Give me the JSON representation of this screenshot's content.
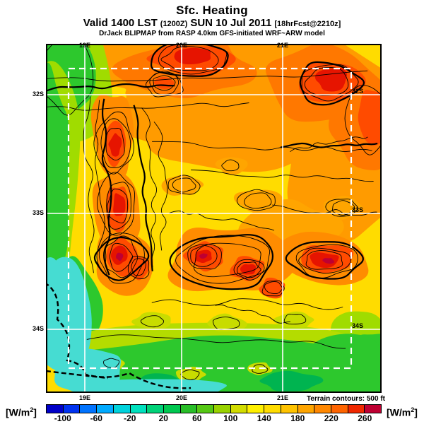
{
  "header": {
    "title": "Sfc. Heating",
    "valid_prefix": "Valid 1400 LST",
    "valid_zulu": "(1200Z)",
    "valid_date": "SUN 10 Jul 2011",
    "forecast_tag": "[18hrFcst@2210z]",
    "model_line": "DrJack BLIPMAP from RASP 4.0km GFS-initiated WRF~ARW model"
  },
  "map": {
    "lon_labels": [
      "19E",
      "20E",
      "21E"
    ],
    "lat_labels": [
      "32S",
      "33S",
      "34S"
    ]
  },
  "footer": {
    "units_left": "[W/m²]",
    "units_right": "[W/m²]",
    "terrain_note": "Terrain contours: 500 ft"
  },
  "colorbar": {
    "min": -120,
    "max": 280,
    "step": 20,
    "tick_values": [
      -100,
      -60,
      -20,
      20,
      60,
      100,
      140,
      180,
      220,
      260
    ],
    "segment_colors": [
      "#0000C8",
      "#0032F0",
      "#0073FF",
      "#00AAFF",
      "#00D2DC",
      "#00E1BE",
      "#00D278",
      "#00C850",
      "#28BE28",
      "#55C814",
      "#99D200",
      "#D2DC00",
      "#FFF000",
      "#FFDC00",
      "#FFC300",
      "#FFA500",
      "#FF8700",
      "#FF6400",
      "#F02800",
      "#BE0032"
    ]
  },
  "chart_data": {
    "type": "heatmap",
    "title": "Sfc. Heating",
    "units": "W/m²",
    "field": "surface heating filled contours over terrain map",
    "scale_range": [
      -120,
      280
    ],
    "scale_step": 20,
    "scale_ticks": [
      -100,
      -60,
      -20,
      20,
      60,
      100,
      140,
      180,
      220,
      260
    ],
    "lon_gridlines_deg_e": [
      19,
      20,
      21
    ],
    "lat_gridlines_deg_s": [
      32,
      33,
      34
    ],
    "terrain_contour_interval_ft": 500,
    "legend_position": "bottom"
  }
}
